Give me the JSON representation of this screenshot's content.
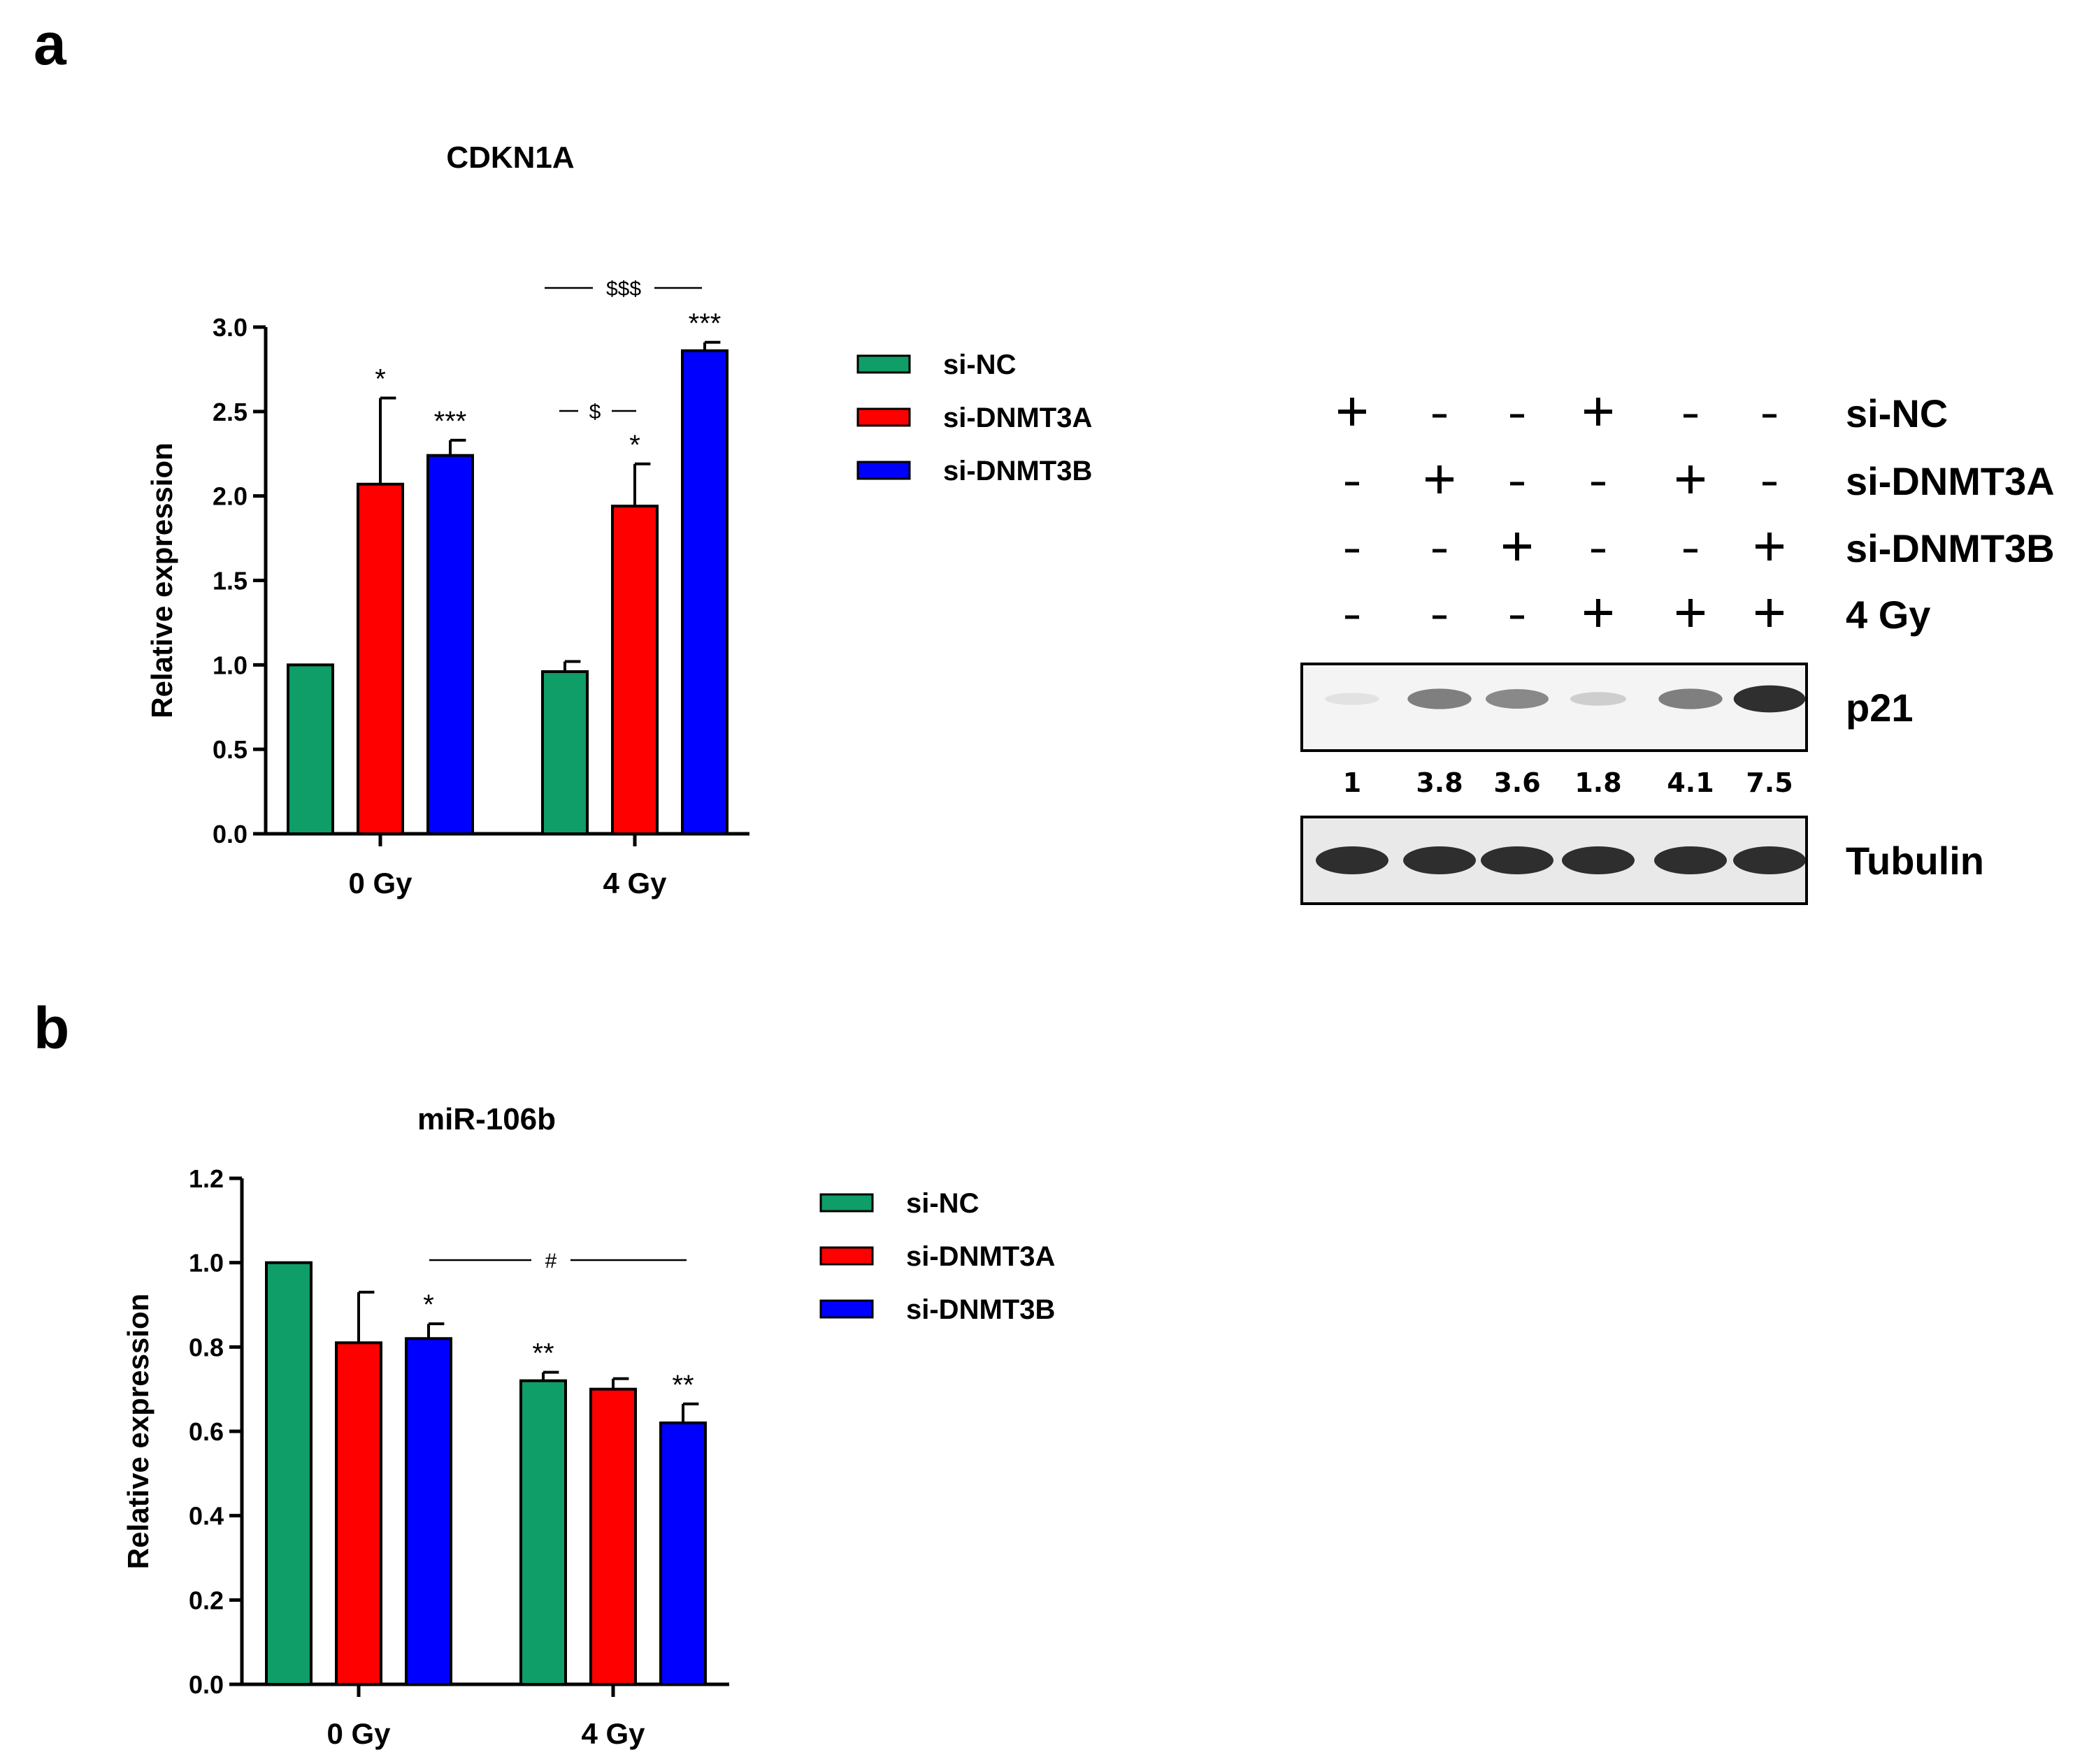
{
  "panels": {
    "a_label": "a",
    "b_label": "b"
  },
  "colors": {
    "si-NC": "#0f9d68",
    "si-DNMT3A": "#ff0000",
    "si-DNMT3B": "#0000ff"
  },
  "chart_data": [
    {
      "type": "bar",
      "title": "CDKN1A",
      "ylabel": "Relative expression",
      "xlabel": "",
      "categories": [
        "0 Gy",
        "4 Gy"
      ],
      "ylim": [
        0,
        3.0
      ],
      "yticks": [
        "0.0",
        "0.5",
        "1.0",
        "1.5",
        "2.0",
        "2.5",
        "3.0"
      ],
      "legend_position": "right",
      "series": [
        {
          "name": "si-NC",
          "values": [
            1.0,
            0.96
          ],
          "errors": [
            0,
            0.06
          ],
          "marks": [
            "",
            ""
          ]
        },
        {
          "name": "si-DNMT3A",
          "values": [
            2.07,
            1.94
          ],
          "errors": [
            0.51,
            0.25
          ],
          "marks": [
            "*",
            "*"
          ]
        },
        {
          "name": "si-DNMT3B",
          "values": [
            2.24,
            2.86
          ],
          "errors": [
            0.09,
            0.05
          ],
          "marks": [
            "***",
            "***"
          ]
        }
      ],
      "comparisons": [
        {
          "label": "$$$",
          "between": "si-NC 4 Gy vs si-DNMT3B 4 Gy"
        },
        {
          "label": "$",
          "between": "si-NC 4 Gy vs si-DNMT3A 4 Gy"
        }
      ]
    },
    {
      "type": "bar",
      "title": "miR-106b",
      "ylabel": "Relative expression",
      "xlabel": "",
      "categories": [
        "0 Gy",
        "4 Gy"
      ],
      "ylim": [
        0,
        1.2
      ],
      "yticks": [
        "0.0",
        "0.2",
        "0.4",
        "0.6",
        "0.8",
        "1.0",
        "1.2"
      ],
      "legend_position": "right",
      "series": [
        {
          "name": "si-NC",
          "values": [
            1.0,
            0.72
          ],
          "errors": [
            0,
            0.02
          ],
          "marks": [
            "",
            "**"
          ]
        },
        {
          "name": "si-DNMT3A",
          "values": [
            0.81,
            0.7
          ],
          "errors": [
            0.12,
            0.025
          ],
          "marks": [
            "",
            ""
          ]
        },
        {
          "name": "si-DNMT3B",
          "values": [
            0.82,
            0.62
          ],
          "errors": [
            0.035,
            0.045
          ],
          "marks": [
            "*",
            "**"
          ]
        }
      ],
      "comparisons": [
        {
          "label": "#",
          "between": "si-DNMT3B 0 Gy vs si-DNMT3B 4 Gy"
        }
      ]
    }
  ],
  "western_blot": {
    "rows": [
      {
        "label": "si-NC",
        "signs": [
          "+",
          "-",
          "-",
          "+",
          "-",
          "-"
        ]
      },
      {
        "label": "si-DNMT3A",
        "signs": [
          "-",
          "+",
          "-",
          "-",
          "+",
          "-"
        ]
      },
      {
        "label": "si-DNMT3B",
        "signs": [
          "-",
          "-",
          "+",
          "-",
          "-",
          "+"
        ]
      },
      {
        "label": "4 Gy",
        "signs": [
          "-",
          "-",
          "-",
          "+",
          "+",
          "+"
        ]
      }
    ],
    "bands": [
      {
        "label": "p21",
        "intensities": [
          0.05,
          0.55,
          0.5,
          0.15,
          0.55,
          0.95
        ]
      },
      {
        "label": "Tubulin",
        "intensities": [
          0.95,
          0.95,
          0.95,
          0.95,
          0.95,
          0.95
        ]
      }
    ],
    "quantification": [
      "1",
      "3.8",
      "3.6",
      "1.8",
      "4.1",
      "7.5"
    ]
  }
}
